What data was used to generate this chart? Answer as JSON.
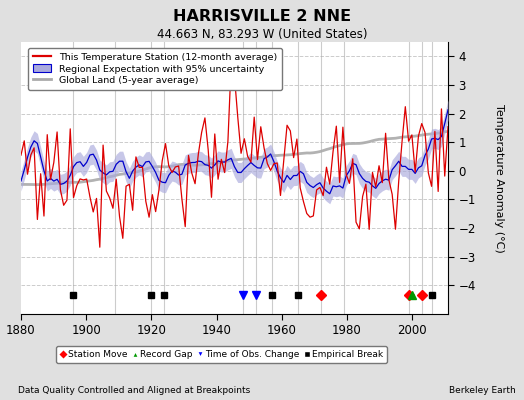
{
  "title": "HARRISVILLE 2 NNE",
  "subtitle": "44.663 N, 83.293 W (United States)",
  "ylabel": "Temperature Anomaly (°C)",
  "xlabel_left": "Data Quality Controlled and Aligned at Breakpoints",
  "xlabel_right": "Berkeley Earth",
  "year_start": 1880,
  "year_end": 2011,
  "ylim": [
    -5.0,
    4.5
  ],
  "yticks": [
    -4,
    -3,
    -2,
    -1,
    0,
    1,
    2,
    3,
    4
  ],
  "xticks": [
    1880,
    1900,
    1920,
    1940,
    1960,
    1980,
    2000
  ],
  "bg_color": "#e0e0e0",
  "plot_bg_color": "#ffffff",
  "grid_color": "#cccccc",
  "station_color": "#dd0000",
  "regional_color": "#0000cc",
  "regional_fill_color": "#aaaadd",
  "global_color": "#aaaaaa",
  "vertical_lines_x": [
    1896,
    1909,
    1920,
    1924,
    1948,
    1952,
    1957,
    1965,
    1972,
    1979,
    1999,
    2003,
    2006
  ],
  "vertical_lines_color": "#aaaaaa",
  "station_moves": [
    1972,
    1999,
    2003
  ],
  "record_gaps": [
    2000
  ],
  "obs_changes": [
    1948,
    1952
  ],
  "empirical_breaks": [
    1896,
    1920,
    1924,
    1957,
    1965,
    2006
  ],
  "seed": 77
}
